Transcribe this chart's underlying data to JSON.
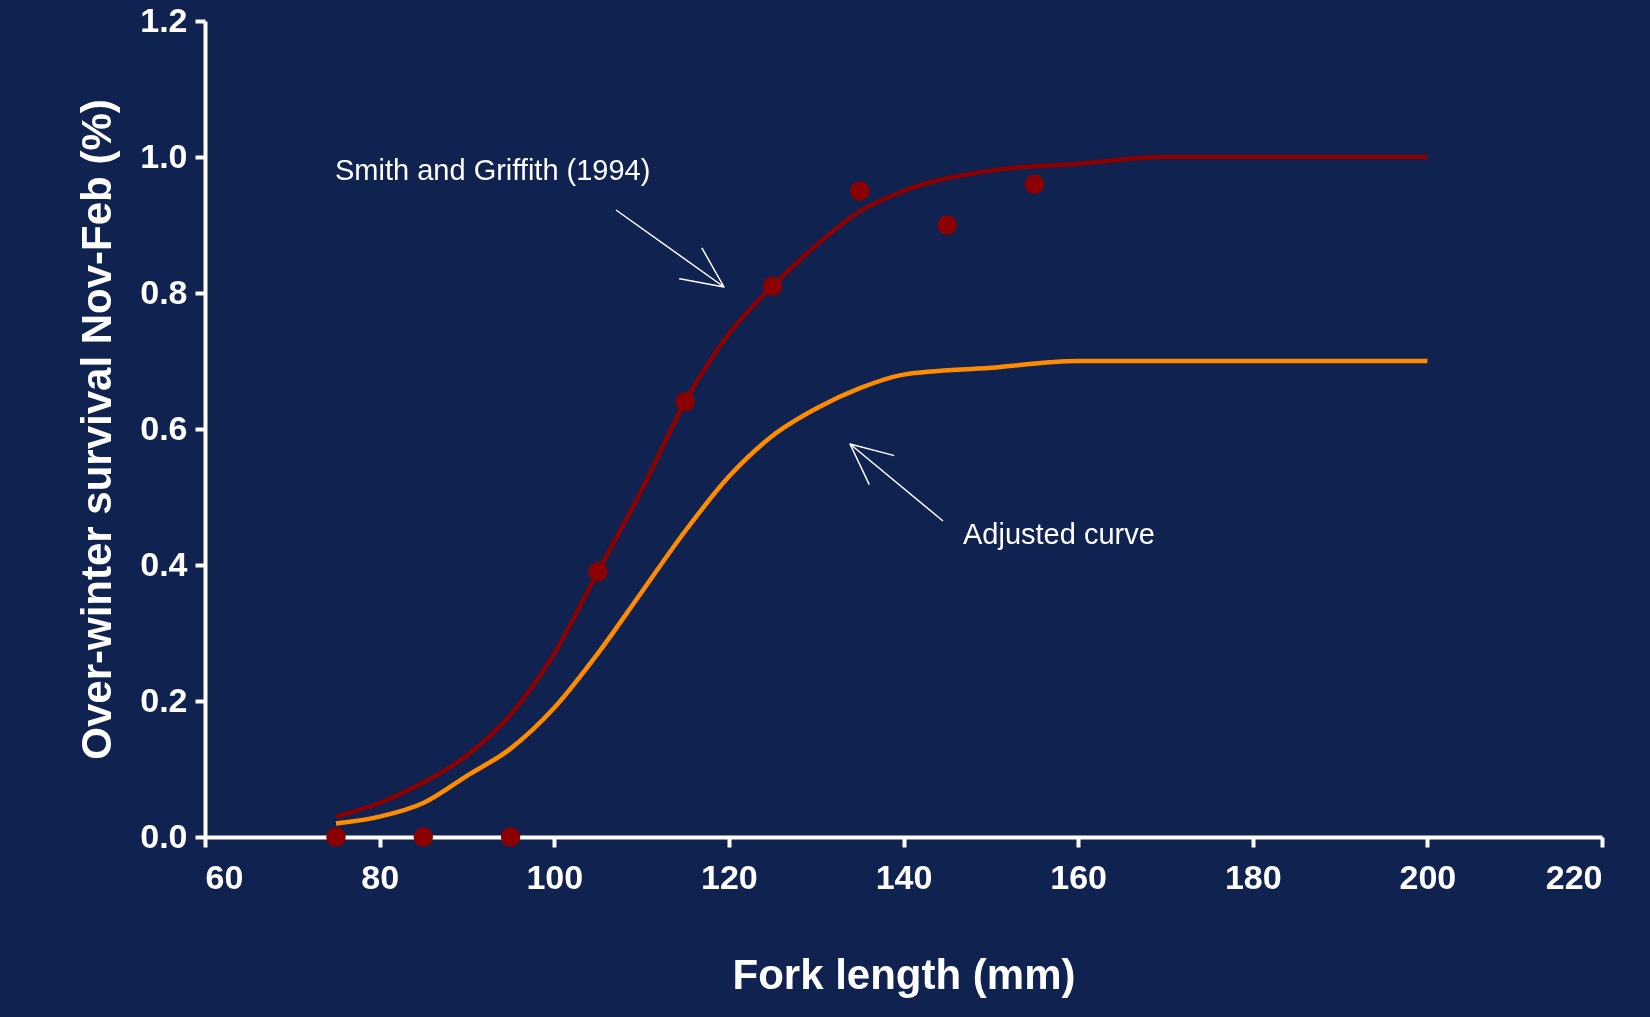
{
  "chart_data": {
    "type": "line",
    "xlabel": "Fork length (mm)",
    "ylabel": "Over-winter survival Nov-Feb (%)",
    "xlim": [
      60,
      220
    ],
    "xticks": [
      60,
      80,
      100,
      120,
      140,
      160,
      180,
      200,
      220
    ],
    "ylim": [
      0,
      1.2
    ],
    "yticks": [
      {
        "value": 0,
        "label": "0.0"
      },
      0.2,
      0.4,
      0.6,
      0.8,
      {
        "value": 1,
        "label": "1.0"
      },
      1.2
    ],
    "grid": false,
    "series": [
      {
        "type": "scatter",
        "color": "#8b0000",
        "marker": "circle",
        "x": [
          75,
          85,
          95,
          105,
          115,
          125,
          135,
          145,
          155
        ],
        "values": [
          0,
          0,
          0,
          0.39,
          0.64,
          0.81,
          0.95,
          0.9,
          0.96
        ]
      },
      {
        "color": "#8b0000",
        "line_style": "solid",
        "marker": "none",
        "x": [
          75,
          80,
          85,
          90,
          95,
          100,
          105,
          110,
          115,
          120,
          125,
          130,
          135,
          140,
          150,
          160,
          170,
          180,
          200
        ],
        "values": [
          0.03,
          0.05,
          0.08,
          0.12,
          0.18,
          0.27,
          0.39,
          0.51,
          0.64,
          0.74,
          0.81,
          0.87,
          0.92,
          0.95,
          0.98,
          0.99,
          1.0,
          1.0,
          1.0
        ]
      },
      {
        "color": "#ff8c00",
        "line_style": "solid",
        "marker": "none",
        "x": [
          75,
          80,
          85,
          90,
          95,
          100,
          105,
          110,
          115,
          120,
          125,
          130,
          135,
          140,
          150,
          160,
          170,
          180,
          200
        ],
        "values": [
          0.02,
          0.03,
          0.05,
          0.09,
          0.13,
          0.19,
          0.27,
          0.36,
          0.45,
          0.53,
          0.59,
          0.63,
          0.66,
          0.68,
          0.69,
          0.7,
          0.7,
          0.7,
          0.7
        ]
      }
    ],
    "annotations": [
      "Smith and Griffith (1994)",
      "Adjusted curve"
    ]
  }
}
